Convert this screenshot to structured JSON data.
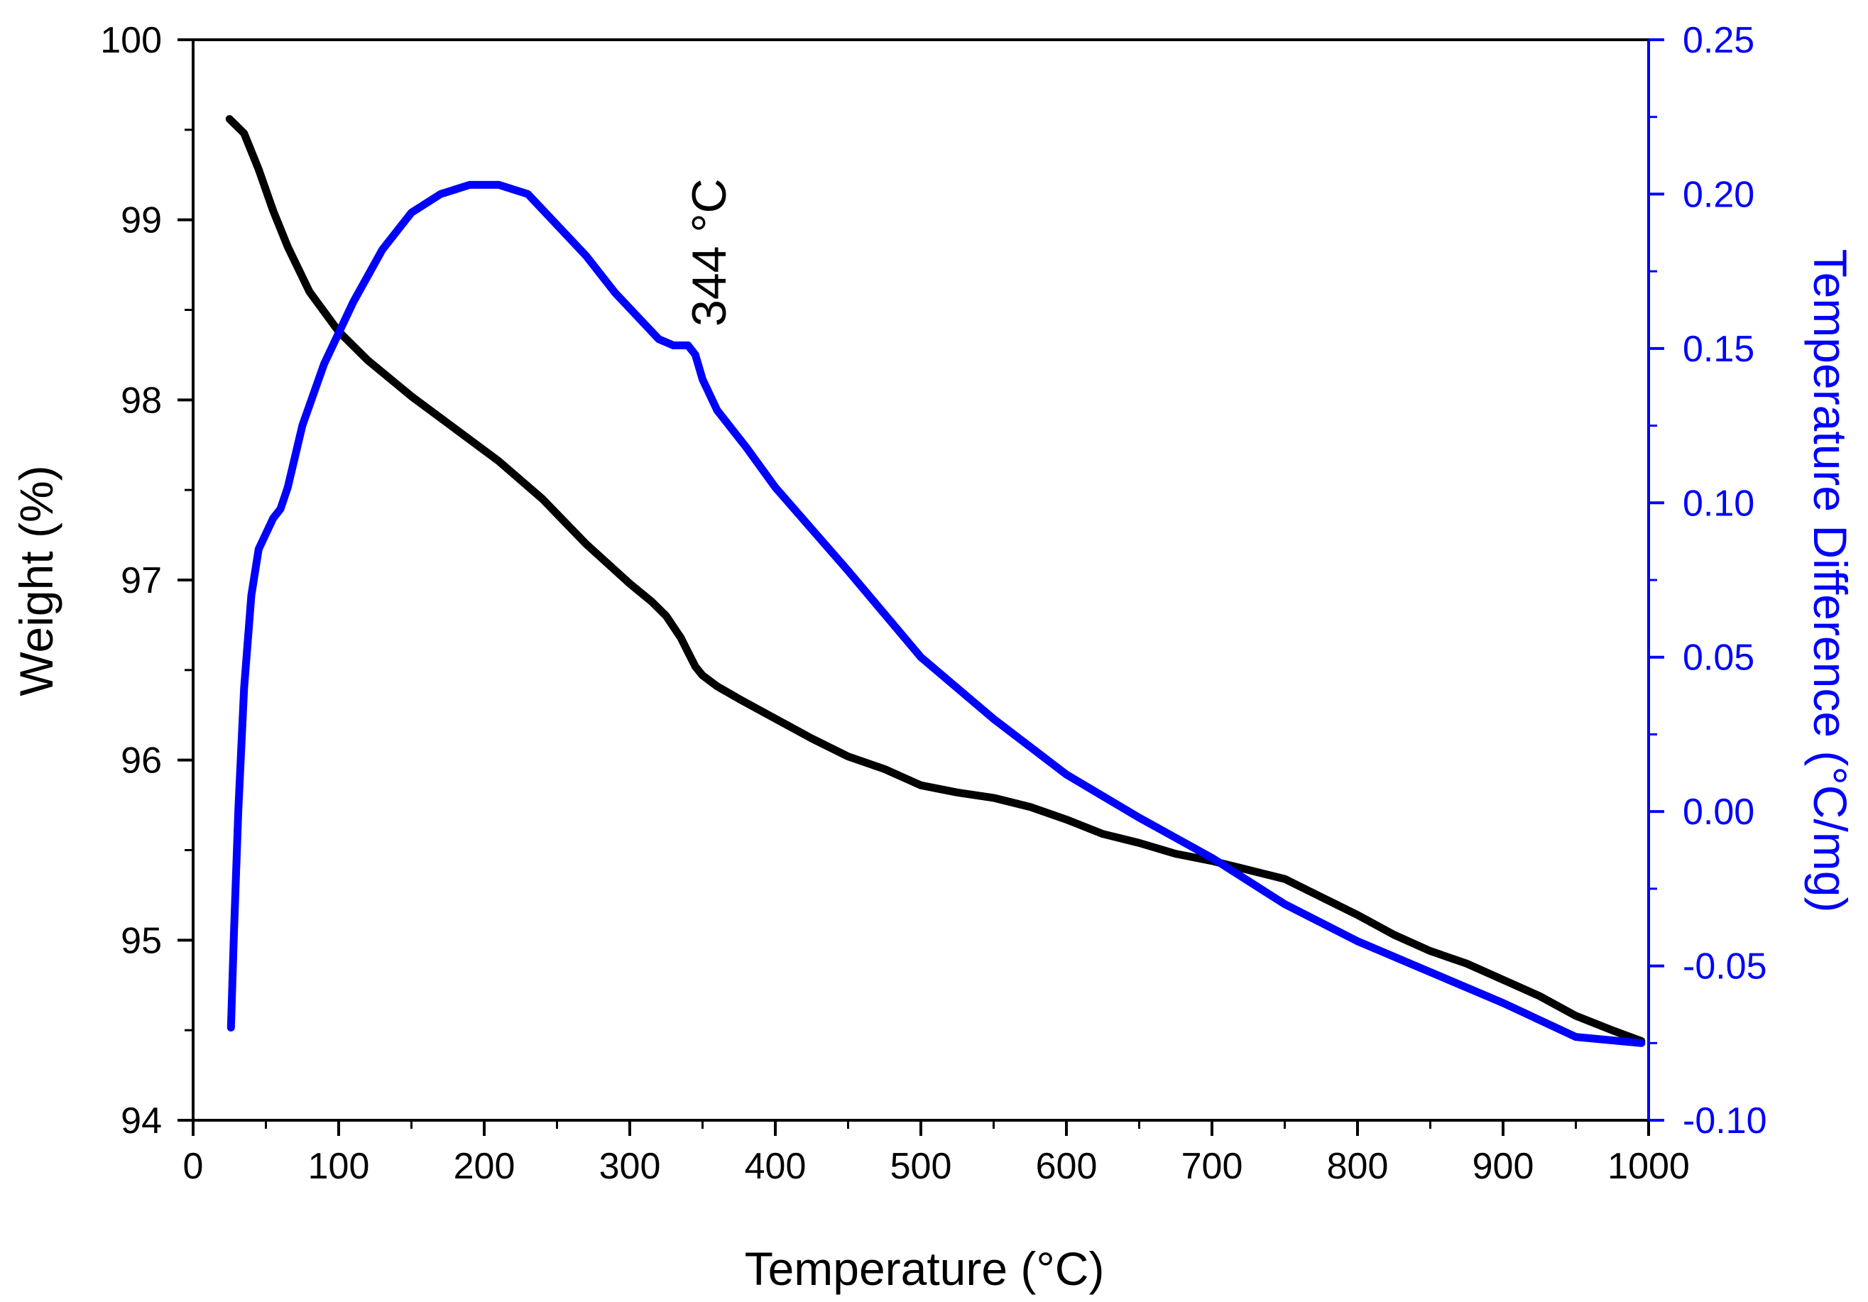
{
  "chart_data": {
    "type": "line",
    "title": "",
    "xlabel": "Temperature (°C)",
    "ylabel": "Weight (%)",
    "y2label": "Temperature Difference (°C/mg)",
    "xlim": [
      0,
      1000
    ],
    "ylim": [
      94,
      100
    ],
    "y2lim": [
      -0.1,
      0.25
    ],
    "grid": false,
    "x_ticks": [
      "0",
      "100",
      "200",
      "300",
      "400",
      "500",
      "600",
      "700",
      "800",
      "900",
      "1000"
    ],
    "y_ticks": [
      "94",
      "95",
      "96",
      "97",
      "98",
      "99",
      "100"
    ],
    "y2_ticks": [
      "-0.10",
      "-0.05",
      "0.00",
      "0.05",
      "0.10",
      "0.15",
      "0.20",
      "0.25"
    ],
    "annotation": "344 °C",
    "colors": {
      "weight": "#000000",
      "dta": "#0000ff",
      "axis": "#000000",
      "axis2": "#0000ff"
    },
    "series": [
      {
        "name": "Weight",
        "axis": "left",
        "color": "#000000",
        "x": [
          25,
          35,
          45,
          55,
          65,
          80,
          100,
          120,
          150,
          180,
          210,
          240,
          270,
          300,
          315,
          325,
          335,
          340,
          345,
          350,
          360,
          375,
          400,
          425,
          450,
          475,
          500,
          525,
          550,
          575,
          600,
          625,
          650,
          675,
          700,
          725,
          750,
          775,
          800,
          825,
          850,
          875,
          900,
          925,
          950,
          975,
          995
        ],
        "y": [
          99.56,
          99.48,
          99.28,
          99.05,
          98.85,
          98.6,
          98.38,
          98.22,
          98.02,
          97.84,
          97.66,
          97.45,
          97.2,
          96.98,
          96.88,
          96.8,
          96.68,
          96.6,
          96.52,
          96.47,
          96.41,
          96.34,
          96.23,
          96.12,
          96.02,
          95.95,
          95.86,
          95.82,
          95.79,
          95.74,
          95.67,
          95.59,
          95.54,
          95.48,
          95.44,
          95.39,
          95.34,
          95.24,
          95.14,
          95.03,
          94.94,
          94.87,
          94.78,
          94.69,
          94.58,
          94.5,
          94.44
        ]
      },
      {
        "name": "Temperature Difference",
        "axis": "right",
        "color": "#0000ff",
        "x": [
          26,
          28,
          31,
          35,
          40,
          45,
          50,
          55,
          60,
          65,
          75,
          90,
          110,
          130,
          150,
          170,
          190,
          210,
          230,
          250,
          270,
          290,
          310,
          320,
          330,
          340,
          345,
          350,
          360,
          380,
          400,
          450,
          500,
          550,
          600,
          650,
          700,
          750,
          800,
          850,
          900,
          950,
          995
        ],
        "y": [
          -0.07,
          -0.04,
          0.0,
          0.04,
          0.07,
          0.085,
          0.09,
          0.095,
          0.098,
          0.105,
          0.125,
          0.145,
          0.165,
          0.182,
          0.194,
          0.2,
          0.203,
          0.203,
          0.2,
          0.19,
          0.18,
          0.168,
          0.158,
          0.153,
          0.151,
          0.151,
          0.148,
          0.14,
          0.13,
          0.118,
          0.105,
          0.078,
          0.05,
          0.03,
          0.012,
          -0.002,
          -0.015,
          -0.03,
          -0.042,
          -0.052,
          -0.062,
          -0.073,
          -0.075
        ]
      }
    ]
  }
}
